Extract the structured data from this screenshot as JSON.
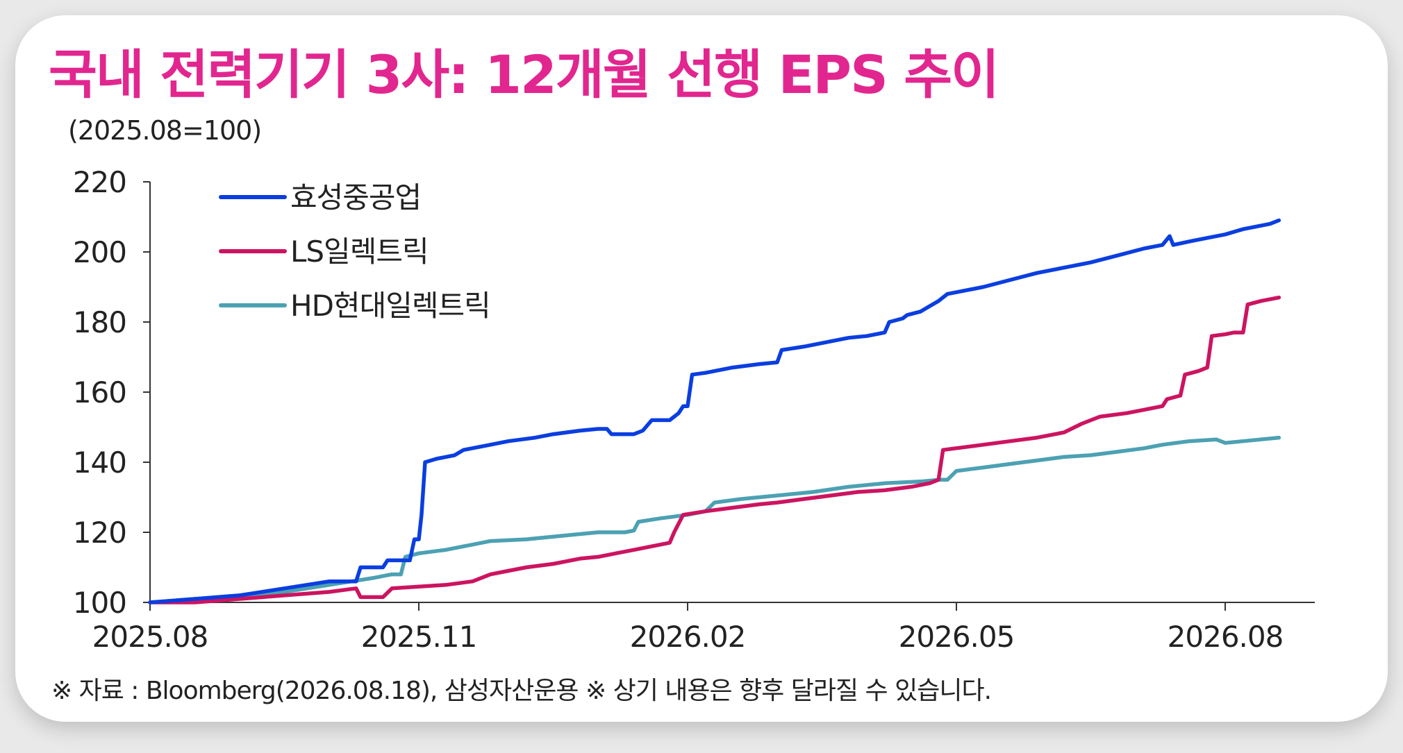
{
  "title": "국내 전력기기 3사: 12개월 선행 EPS 추이",
  "unit_label": "(2025.08=100)",
  "footer": "※ 자료 : Bloomberg(2026.08.18), 삼성자산운용 ※ 상기 내용은 향후 달라질 수 있습니다.",
  "chart_data": {
    "type": "line",
    "x_ticks": [
      "2025.08",
      "2025.11",
      "2026.02",
      "2026.05",
      "2026.08"
    ],
    "x_tick_positions_months": [
      0,
      3,
      6,
      9,
      12
    ],
    "xlim_months": [
      0,
      13
    ],
    "ylim": [
      100,
      220
    ],
    "y_ticks": [
      100,
      120,
      140,
      160,
      180,
      200,
      220
    ],
    "grid": false,
    "legend_position": "top-left",
    "series": [
      {
        "name": "효성중공업",
        "color": "#0a3ee0",
        "points": [
          [
            0,
            100
          ],
          [
            0.5,
            101
          ],
          [
            1.0,
            102
          ],
          [
            1.5,
            104
          ],
          [
            2.0,
            106
          ],
          [
            2.3,
            106
          ],
          [
            2.35,
            110
          ],
          [
            2.6,
            110
          ],
          [
            2.65,
            112
          ],
          [
            2.9,
            112
          ],
          [
            2.95,
            118
          ],
          [
            3.0,
            118
          ],
          [
            3.03,
            125
          ],
          [
            3.07,
            140
          ],
          [
            3.2,
            141
          ],
          [
            3.4,
            142
          ],
          [
            3.5,
            143.5
          ],
          [
            3.8,
            145
          ],
          [
            4.0,
            146
          ],
          [
            4.3,
            147
          ],
          [
            4.5,
            148
          ],
          [
            4.8,
            149
          ],
          [
            5.0,
            149.5
          ],
          [
            5.1,
            149.5
          ],
          [
            5.15,
            148
          ],
          [
            5.4,
            148
          ],
          [
            5.5,
            149
          ],
          [
            5.6,
            152
          ],
          [
            5.8,
            152
          ],
          [
            5.9,
            154
          ],
          [
            5.95,
            156
          ],
          [
            6.0,
            156
          ],
          [
            6.05,
            165
          ],
          [
            6.2,
            165.5
          ],
          [
            6.5,
            167
          ],
          [
            6.8,
            168
          ],
          [
            7.0,
            168.5
          ],
          [
            7.05,
            172
          ],
          [
            7.3,
            173
          ],
          [
            7.5,
            174
          ],
          [
            7.8,
            175.5
          ],
          [
            8.0,
            176
          ],
          [
            8.2,
            177
          ],
          [
            8.25,
            180
          ],
          [
            8.4,
            181
          ],
          [
            8.45,
            182
          ],
          [
            8.6,
            183
          ],
          [
            8.7,
            184.5
          ],
          [
            8.8,
            186
          ],
          [
            8.9,
            188
          ],
          [
            9.0,
            188.5
          ],
          [
            9.3,
            190
          ],
          [
            9.6,
            192
          ],
          [
            9.9,
            194
          ],
          [
            10.2,
            195.5
          ],
          [
            10.5,
            197
          ],
          [
            10.8,
            199
          ],
          [
            11.1,
            201
          ],
          [
            11.3,
            202
          ],
          [
            11.38,
            204.5
          ],
          [
            11.42,
            202
          ],
          [
            11.6,
            203
          ],
          [
            11.8,
            204
          ],
          [
            12.0,
            205
          ],
          [
            12.2,
            206.5
          ],
          [
            12.5,
            208
          ],
          [
            12.6,
            209
          ]
        ]
      },
      {
        "name": "LS일렉트릭",
        "color": "#cc1460",
        "points": [
          [
            0,
            100
          ],
          [
            0.5,
            100
          ],
          [
            1.0,
            101
          ],
          [
            1.5,
            102
          ],
          [
            2.0,
            103
          ],
          [
            2.3,
            104
          ],
          [
            2.35,
            101.5
          ],
          [
            2.6,
            101.5
          ],
          [
            2.7,
            104
          ],
          [
            3.0,
            104.5
          ],
          [
            3.3,
            105
          ],
          [
            3.6,
            106
          ],
          [
            3.8,
            108
          ],
          [
            4.0,
            109
          ],
          [
            4.2,
            110
          ],
          [
            4.5,
            111
          ],
          [
            4.8,
            112.5
          ],
          [
            5.0,
            113
          ],
          [
            5.2,
            114
          ],
          [
            5.4,
            115
          ],
          [
            5.6,
            116
          ],
          [
            5.8,
            117
          ],
          [
            5.85,
            120
          ],
          [
            5.95,
            125
          ],
          [
            6.2,
            126
          ],
          [
            6.5,
            127
          ],
          [
            6.8,
            128
          ],
          [
            7.0,
            128.5
          ],
          [
            7.3,
            129.5
          ],
          [
            7.6,
            130.5
          ],
          [
            7.9,
            131.5
          ],
          [
            8.2,
            132
          ],
          [
            8.5,
            133
          ],
          [
            8.7,
            134
          ],
          [
            8.8,
            135
          ],
          [
            8.85,
            143.5
          ],
          [
            9.0,
            144
          ],
          [
            9.3,
            145
          ],
          [
            9.6,
            146
          ],
          [
            9.9,
            147
          ],
          [
            10.2,
            148.5
          ],
          [
            10.4,
            151
          ],
          [
            10.6,
            153
          ],
          [
            10.9,
            154
          ],
          [
            11.1,
            155
          ],
          [
            11.3,
            156
          ],
          [
            11.35,
            158
          ],
          [
            11.5,
            159
          ],
          [
            11.55,
            165
          ],
          [
            11.7,
            166
          ],
          [
            11.8,
            167
          ],
          [
            11.85,
            176
          ],
          [
            12.0,
            176.5
          ],
          [
            12.1,
            177
          ],
          [
            12.2,
            177
          ],
          [
            12.25,
            185
          ],
          [
            12.4,
            186
          ],
          [
            12.6,
            187
          ]
        ]
      },
      {
        "name": "HD현대일렉트릭",
        "color": "#4ca1b3",
        "points": [
          [
            0,
            100
          ],
          [
            0.5,
            101
          ],
          [
            1.0,
            102
          ],
          [
            1.5,
            103
          ],
          [
            2.0,
            105
          ],
          [
            2.5,
            107
          ],
          [
            2.7,
            108
          ],
          [
            2.8,
            108
          ],
          [
            2.85,
            113
          ],
          [
            3.0,
            114
          ],
          [
            3.3,
            115
          ],
          [
            3.6,
            116.5
          ],
          [
            3.8,
            117.5
          ],
          [
            4.2,
            118
          ],
          [
            4.6,
            119
          ],
          [
            5.0,
            120
          ],
          [
            5.3,
            120
          ],
          [
            5.4,
            120.5
          ],
          [
            5.45,
            123
          ],
          [
            5.7,
            124
          ],
          [
            6.0,
            125
          ],
          [
            6.2,
            126
          ],
          [
            6.3,
            128.5
          ],
          [
            6.6,
            129.5
          ],
          [
            7.0,
            130.5
          ],
          [
            7.4,
            131.5
          ],
          [
            7.8,
            133
          ],
          [
            8.2,
            134
          ],
          [
            8.6,
            134.5
          ],
          [
            8.8,
            135
          ],
          [
            8.9,
            135
          ],
          [
            9.0,
            137.5
          ],
          [
            9.3,
            138.5
          ],
          [
            9.6,
            139.5
          ],
          [
            9.9,
            140.5
          ],
          [
            10.2,
            141.5
          ],
          [
            10.5,
            142
          ],
          [
            10.8,
            143
          ],
          [
            11.1,
            144
          ],
          [
            11.3,
            145
          ],
          [
            11.6,
            146
          ],
          [
            11.9,
            146.5
          ],
          [
            12.0,
            145.5
          ],
          [
            12.2,
            146
          ],
          [
            12.6,
            147
          ]
        ]
      }
    ]
  }
}
